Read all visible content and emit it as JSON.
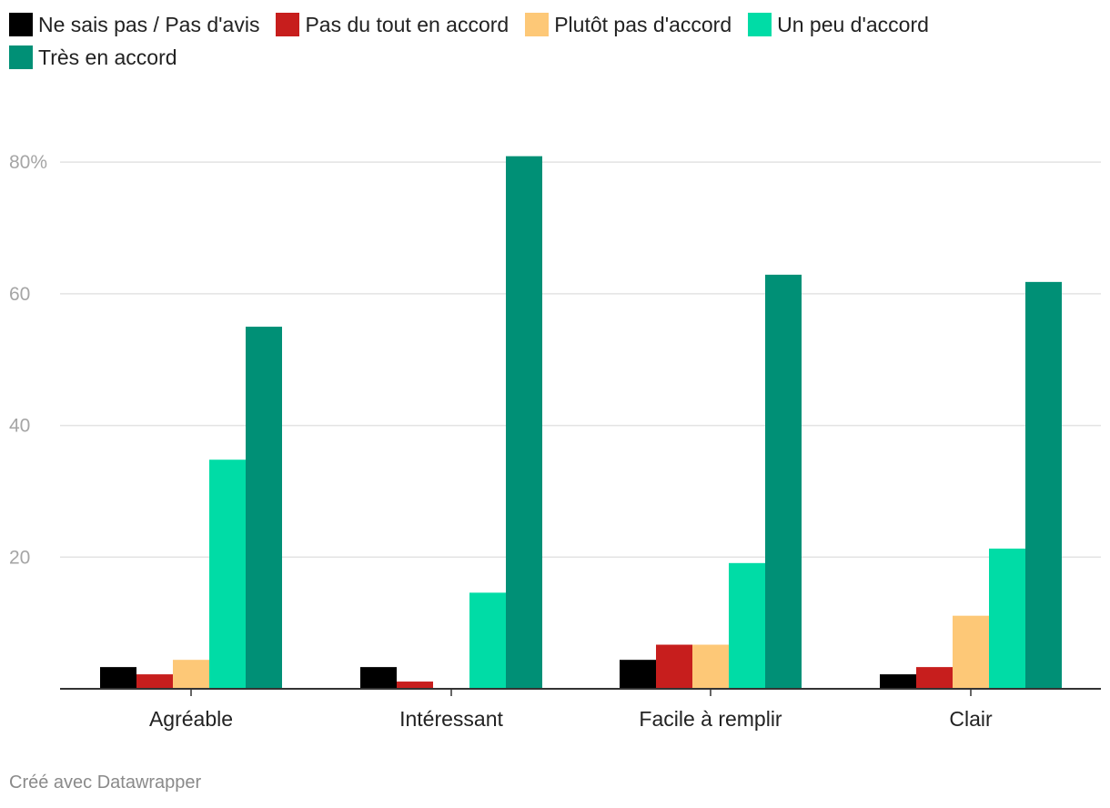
{
  "chart_data": {
    "type": "bar",
    "categories": [
      "Agréable",
      "Intéressant",
      "Facile à remplir",
      "Clair"
    ],
    "series": [
      {
        "name": "Ne sais pas / Pas d'avis",
        "color": "#000000",
        "values": [
          3.3,
          3.3,
          4.4,
          2.2
        ]
      },
      {
        "name": "Pas du tout en accord",
        "color": "#c71e1d",
        "values": [
          2.2,
          1.1,
          6.7,
          3.3
        ]
      },
      {
        "name": "Plutôt pas d'accord",
        "color": "#fdc877",
        "values": [
          4.4,
          0,
          6.7,
          11.1
        ]
      },
      {
        "name": "Un peu d'accord",
        "color": "#00dca6",
        "values": [
          34.8,
          14.6,
          19.1,
          21.3
        ]
      },
      {
        "name": "Très en accord",
        "color": "#009076",
        "values": [
          55.0,
          80.9,
          62.9,
          61.8
        ]
      }
    ],
    "ylim": [
      0,
      85
    ],
    "yticks": [
      20,
      40,
      60,
      80
    ],
    "ytick_labels": [
      "20",
      "40",
      "60",
      "80%"
    ],
    "grid": true,
    "legend_position": "top"
  },
  "footer": "Créé avec Datawrapper"
}
